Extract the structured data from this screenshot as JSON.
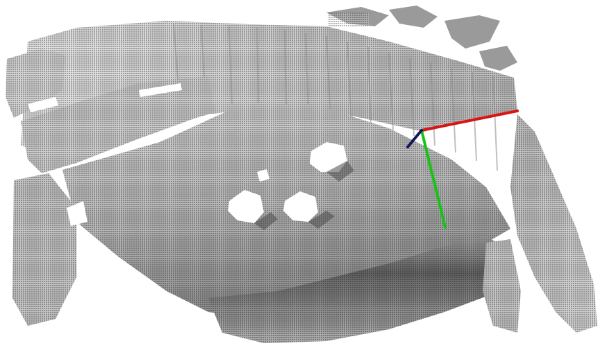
{
  "viewer": {
    "background_color": "#ffffff",
    "point_color_light": "#d6d6d6",
    "point_color_dark": "#2e2e2e",
    "hole_color": "#ffffff"
  },
  "axes": {
    "x_axis_color": "#d81414",
    "y_axis_color": "#16c416",
    "z_axis_color": "#14145a"
  }
}
